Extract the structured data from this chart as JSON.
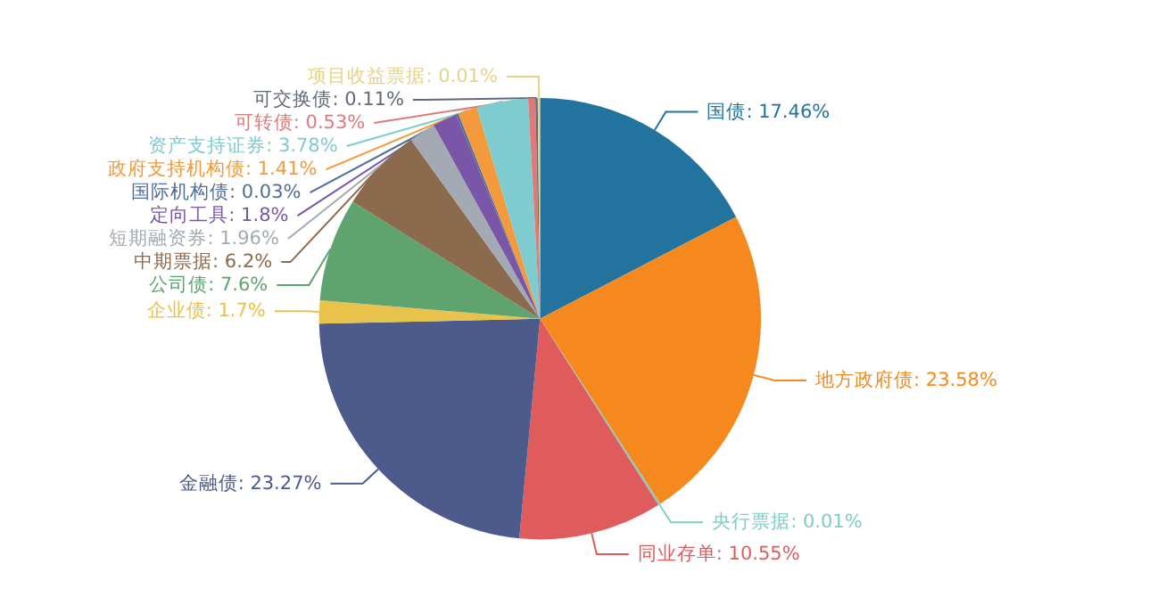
{
  "chart_data": {
    "type": "pie",
    "categories": [
      "国债",
      "地方政府债",
      "央行票据",
      "同业存单",
      "金融债",
      "企业债",
      "公司债",
      "中期票据",
      "短期融资券",
      "定向工具",
      "国际机构债",
      "政府支持机构债",
      "资产支持证券",
      "可转债",
      "可交换债",
      "项目收益票据"
    ],
    "values": [
      17.46,
      23.58,
      0.01,
      10.55,
      23.27,
      1.7,
      7.6,
      6.2,
      1.96,
      1.8,
      0.03,
      1.41,
      3.78,
      0.53,
      0.11,
      0.01
    ],
    "value_labels": [
      "17.46%",
      "23.58%",
      "0.01%",
      "10.55%",
      "23.27%",
      "1.7%",
      "7.6%",
      "6.2%",
      "1.96%",
      "1.8%",
      "0.03%",
      "1.41%",
      "3.78%",
      "0.53%",
      "0.11%",
      "0.01%"
    ],
    "colors": [
      "#22749f",
      "#f5891d",
      "#7fcdc6",
      "#e05c5c",
      "#4c5a8c",
      "#e8c24a",
      "#5fa36f",
      "#8c6a4e",
      "#a3aab3",
      "#7a56a8",
      "#4f6e9a",
      "#f29a3c",
      "#7ecbd0",
      "#e07a7a",
      "#606a78",
      "#e8d28a"
    ]
  }
}
